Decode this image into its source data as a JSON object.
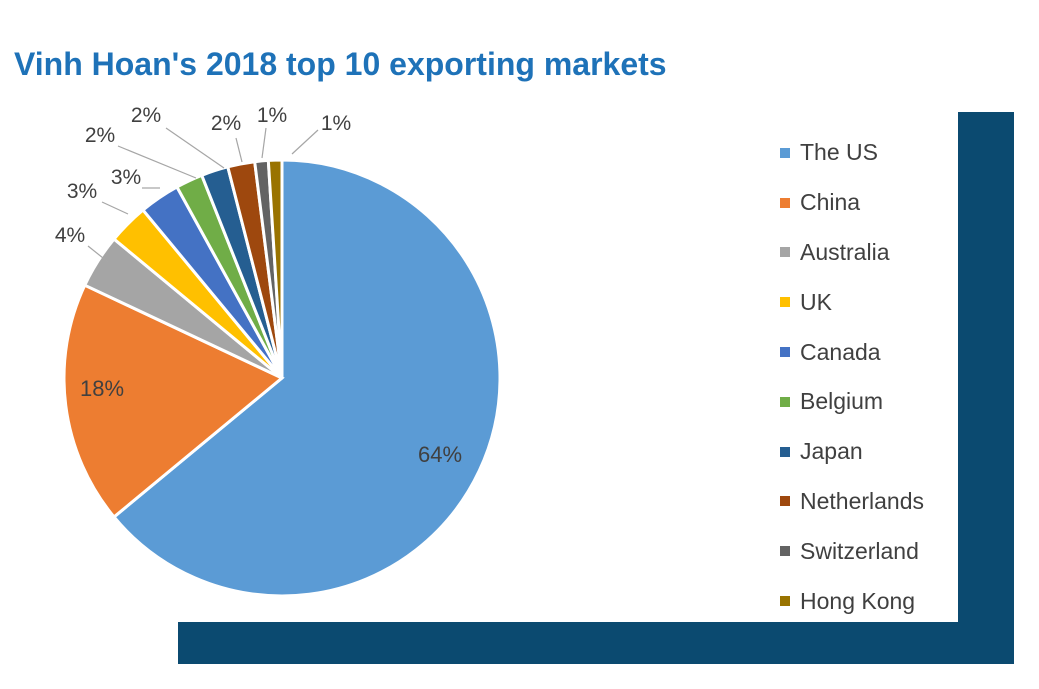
{
  "chart_data": {
    "type": "pie",
    "title": "Vinh Hoan's 2018 top 10 exporting markets",
    "categories": [
      "The US",
      "China",
      "Australia",
      "UK",
      "Canada",
      "Belgium",
      "Japan",
      "Netherlands",
      "Switzerland",
      "Hong Kong"
    ],
    "values": [
      64,
      18,
      4,
      3,
      3,
      2,
      2,
      2,
      1,
      1
    ],
    "data_labels": [
      "64%",
      "18%",
      "4%",
      "3%",
      "3%",
      "2%",
      "2%",
      "2%",
      "1%",
      "1%"
    ],
    "colors": [
      "#5b9bd5",
      "#ed7d31",
      "#a5a5a5",
      "#ffc000",
      "#4472c4",
      "#70ad47",
      "#255e91",
      "#9e480e",
      "#636363",
      "#997300"
    ],
    "legend_position": "right",
    "start_angle": "12 o'clock",
    "direction": "clockwise"
  },
  "frame_color": "#0b4a70"
}
